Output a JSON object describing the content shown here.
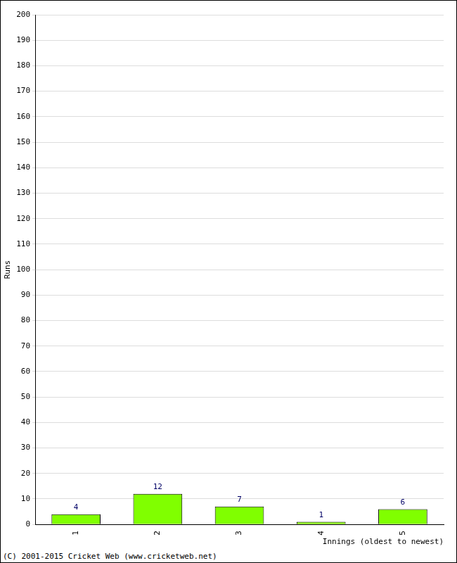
{
  "chart_data": {
    "type": "bar",
    "categories": [
      "1",
      "2",
      "3",
      "4",
      "5"
    ],
    "values": [
      4,
      12,
      7,
      1,
      6
    ],
    "color": "#80ff00",
    "y_label": "Runs",
    "x_label": "Innings (oldest to newest)",
    "annotations": [
      "(C) 2001-2015 Cricket Web (www.cricketweb.net)"
    ],
    "ylim": [
      0,
      200
    ],
    "yticks": [
      0,
      10,
      20,
      30,
      40,
      50,
      60,
      70,
      80,
      90,
      100,
      110,
      120,
      130,
      140,
      150,
      160,
      170,
      180,
      190,
      200
    ],
    "grid": true,
    "data_labels": true
  }
}
